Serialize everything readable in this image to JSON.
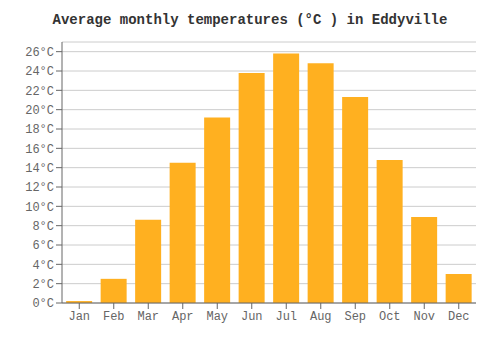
{
  "chart_data": {
    "type": "bar",
    "title": "Average monthly temperatures (°C ) in Eddyville",
    "categories": [
      "Jan",
      "Feb",
      "Mar",
      "Apr",
      "May",
      "Jun",
      "Jul",
      "Aug",
      "Sep",
      "Oct",
      "Nov",
      "Dec"
    ],
    "values": [
      0.2,
      2.5,
      8.6,
      14.5,
      19.2,
      23.8,
      25.8,
      24.8,
      21.3,
      14.8,
      8.9,
      3.0
    ],
    "color": "#FFB020",
    "ylim": [
      0,
      27
    ],
    "yticks": [
      {
        "value": 0,
        "label": "0°C"
      },
      {
        "value": 2,
        "label": "2°C"
      },
      {
        "value": 4,
        "label": "4°C"
      },
      {
        "value": 6,
        "label": "6°C"
      },
      {
        "value": 8,
        "label": "8°C"
      },
      {
        "value": 10,
        "label": "10°C"
      },
      {
        "value": 12,
        "label": "12°C"
      },
      {
        "value": 14,
        "label": "14°C"
      },
      {
        "value": 16,
        "label": "16°C"
      },
      {
        "value": 18,
        "label": "18°C"
      },
      {
        "value": 20,
        "label": "20°C"
      },
      {
        "value": 22,
        "label": "22°C"
      },
      {
        "value": 24,
        "label": "24°C"
      },
      {
        "value": 26,
        "label": "26°C"
      }
    ],
    "grid": true
  }
}
